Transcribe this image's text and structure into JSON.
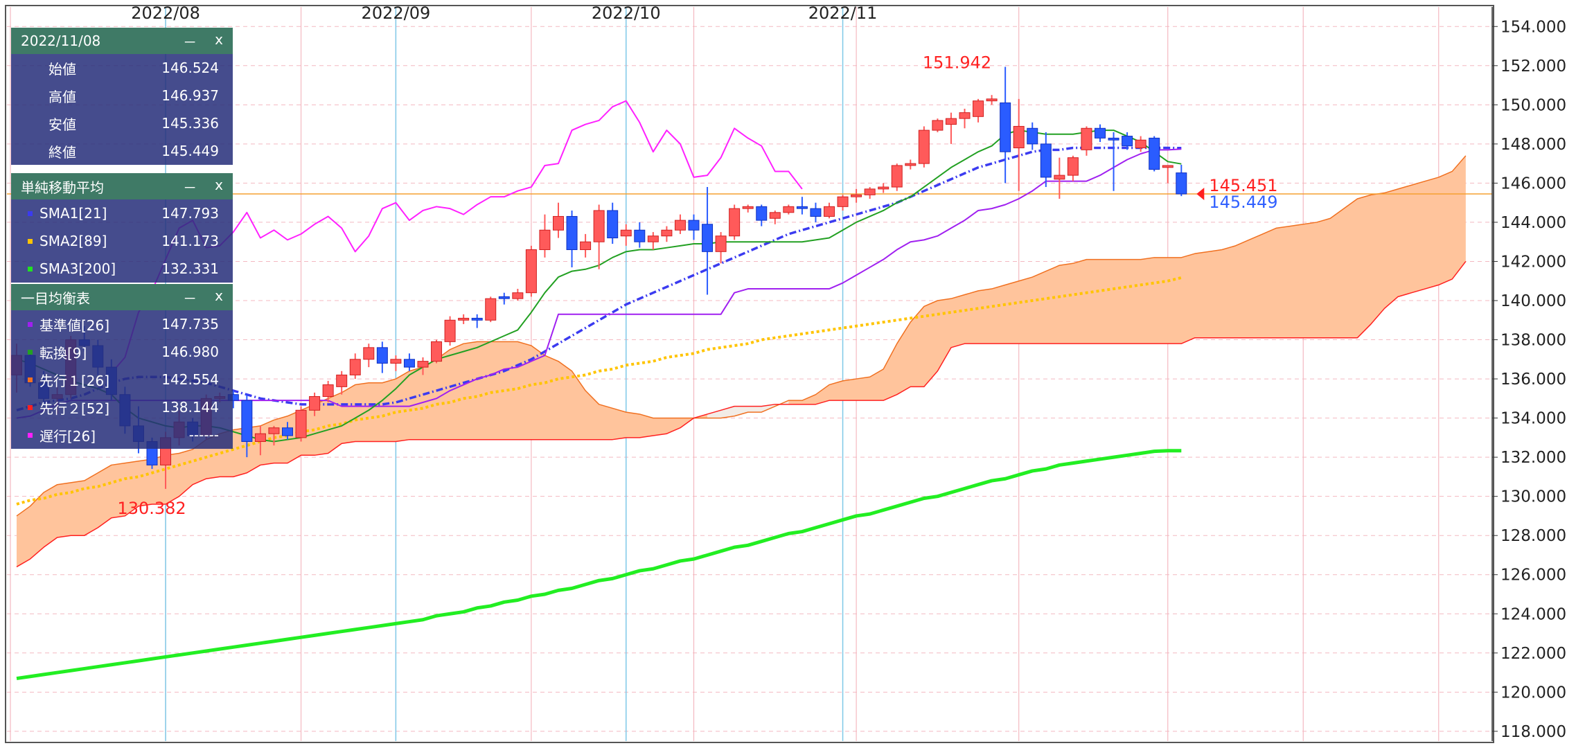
{
  "ohlc_panel": {
    "date": "2022/11/08",
    "minimize": "－",
    "close": "x",
    "rows": [
      {
        "label": "始値",
        "value": "146.524"
      },
      {
        "label": "高値",
        "value": "146.937"
      },
      {
        "label": "安値",
        "value": "145.336"
      },
      {
        "label": "終値",
        "value": "145.449"
      }
    ]
  },
  "sma_panel": {
    "title": "単純移動平均",
    "minimize": "－",
    "close": "x",
    "rows": [
      {
        "label": "SMA1[21]",
        "value": "147.793",
        "color": "#3b3bf0"
      },
      {
        "label": "SMA2[89]",
        "value": "141.173",
        "color": "#ffc400"
      },
      {
        "label": "SMA3[200]",
        "value": "132.331",
        "color": "#22e022"
      }
    ]
  },
  "ichimoku_panel": {
    "title": "一目均衡表",
    "minimize": "－",
    "close": "x",
    "rows": [
      {
        "label": "基準値[26]",
        "value": "147.735",
        "color": "#a020f0"
      },
      {
        "label": "転換[9]",
        "value": "146.980",
        "color": "#22a022"
      },
      {
        "label": "先行１[26]",
        "value": "142.554",
        "color": "#f07020"
      },
      {
        "label": "先行２[52]",
        "value": "138.144",
        "color": "#ff2020"
      },
      {
        "label": "遅行[26]",
        "value": "------",
        "color": "#ff20ff"
      }
    ]
  },
  "chart_data": {
    "type": "candlestick",
    "x_labels": [
      "2022/08",
      "2022/09",
      "2022/10",
      "2022/11"
    ],
    "y_ticks": [
      "118.000",
      "120.000",
      "122.000",
      "124.000",
      "126.000",
      "128.000",
      "130.000",
      "132.000",
      "134.000",
      "136.000",
      "138.000",
      "140.000",
      "142.000",
      "144.000",
      "146.000",
      "148.000",
      "150.000",
      "152.000",
      "154.000"
    ],
    "ylim": [
      117.5,
      155
    ],
    "high_annotation": "151.942",
    "low_annotation": "130.382",
    "price_marker_red": "145.451",
    "price_marker_blue": "145.449",
    "horizontal_line": 145.45,
    "colors": {
      "up": "#ff5a5a",
      "down": "#2a5cff",
      "kumo_fill": "#ffc49c",
      "kumo_fill_bearish": "#f2ece6",
      "hline": "#f5a030",
      "red_text": "#ff2020",
      "blue_text": "#3060ff"
    },
    "candles": [
      [
        136.2,
        137.8,
        135.3,
        137.2
      ],
      [
        137.2,
        137.4,
        135.6,
        135.8
      ],
      [
        135.8,
        136.4,
        134.6,
        135.0
      ],
      [
        135.0,
        135.6,
        134.2,
        135.2
      ],
      [
        135.2,
        138.2,
        135.0,
        138.0
      ],
      [
        138.0,
        138.7,
        137.4,
        137.7
      ],
      [
        137.7,
        138.0,
        136.2,
        136.6
      ],
      [
        136.6,
        137.0,
        134.9,
        135.2
      ],
      [
        135.2,
        135.6,
        133.2,
        133.6
      ],
      [
        133.6,
        134.6,
        132.2,
        132.8
      ],
      [
        132.8,
        133.0,
        131.4,
        131.6
      ],
      [
        131.6,
        133.3,
        130.382,
        133.0
      ],
      [
        133.0,
        134.4,
        132.6,
        133.8
      ],
      [
        133.8,
        134.0,
        132.8,
        133.1
      ],
      [
        133.1,
        135.2,
        132.9,
        135.0
      ],
      [
        135.0,
        135.3,
        134.8,
        135.1
      ],
      [
        135.2,
        135.4,
        134.5,
        134.9
      ],
      [
        134.9,
        135.2,
        132.0,
        132.8
      ],
      [
        132.8,
        133.6,
        132.1,
        133.2
      ],
      [
        133.2,
        133.6,
        132.6,
        133.5
      ],
      [
        133.5,
        133.8,
        132.9,
        133.1
      ],
      [
        133.0,
        134.6,
        132.8,
        134.4
      ],
      [
        134.4,
        135.3,
        134.1,
        135.1
      ],
      [
        135.1,
        135.9,
        134.8,
        135.7
      ],
      [
        135.6,
        136.4,
        135.2,
        136.2
      ],
      [
        136.2,
        137.3,
        136.0,
        137.0
      ],
      [
        137.0,
        137.8,
        136.6,
        137.6
      ],
      [
        137.6,
        137.9,
        136.3,
        136.8
      ],
      [
        136.8,
        137.2,
        136.4,
        137.0
      ],
      [
        137.0,
        137.3,
        136.4,
        136.6
      ],
      [
        136.6,
        137.1,
        136.2,
        136.9
      ],
      [
        136.9,
        138.0,
        136.8,
        137.9
      ],
      [
        137.9,
        139.2,
        137.7,
        139.0
      ],
      [
        139.0,
        139.3,
        138.8,
        139.1
      ],
      [
        139.1,
        139.3,
        138.6,
        139.0
      ],
      [
        139.0,
        140.2,
        138.9,
        140.1
      ],
      [
        140.2,
        140.4,
        139.8,
        140.1
      ],
      [
        140.1,
        140.6,
        140.0,
        140.4
      ],
      [
        140.4,
        142.8,
        140.2,
        142.6
      ],
      [
        142.6,
        144.4,
        142.2,
        143.6
      ],
      [
        143.6,
        145.0,
        143.2,
        144.3
      ],
      [
        144.3,
        144.6,
        141.7,
        142.6
      ],
      [
        142.6,
        143.4,
        142.2,
        143.0
      ],
      [
        143.0,
        144.9,
        141.6,
        144.6
      ],
      [
        144.6,
        145.0,
        142.9,
        143.2
      ],
      [
        143.3,
        143.9,
        142.8,
        143.6
      ],
      [
        143.6,
        144.0,
        142.7,
        143.0
      ],
      [
        143.0,
        143.5,
        142.6,
        143.3
      ],
      [
        143.3,
        143.8,
        143.0,
        143.6
      ],
      [
        143.6,
        144.4,
        143.4,
        144.1
      ],
      [
        144.1,
        144.4,
        143.1,
        143.6
      ],
      [
        143.9,
        145.8,
        140.3,
        142.5
      ],
      [
        142.5,
        143.5,
        141.9,
        143.3
      ],
      [
        143.3,
        144.9,
        143.1,
        144.7
      ],
      [
        144.7,
        144.9,
        144.5,
        144.8
      ],
      [
        144.8,
        144.9,
        143.8,
        144.1
      ],
      [
        144.2,
        144.6,
        143.9,
        144.5
      ],
      [
        144.5,
        144.9,
        144.4,
        144.8
      ],
      [
        144.8,
        145.3,
        144.4,
        144.7
      ],
      [
        144.7,
        145.0,
        144.0,
        144.3
      ],
      [
        144.3,
        145.0,
        144.2,
        144.8
      ],
      [
        144.8,
        145.4,
        144.6,
        145.3
      ],
      [
        145.3,
        145.7,
        145.0,
        145.4
      ],
      [
        145.4,
        145.8,
        145.2,
        145.7
      ],
      [
        145.7,
        146.0,
        145.5,
        145.8
      ],
      [
        145.8,
        147.0,
        145.6,
        146.9
      ],
      [
        146.9,
        147.2,
        146.7,
        147.0
      ],
      [
        147.0,
        148.9,
        146.8,
        148.7
      ],
      [
        148.7,
        149.3,
        148.6,
        149.2
      ],
      [
        149.0,
        149.6,
        148.0,
        149.3
      ],
      [
        149.3,
        149.8,
        148.8,
        149.6
      ],
      [
        149.4,
        150.3,
        149.1,
        150.2
      ],
      [
        150.2,
        150.5,
        150.0,
        150.3
      ],
      [
        150.1,
        151.942,
        146.0,
        147.6
      ],
      [
        147.8,
        150.3,
        145.6,
        148.9
      ],
      [
        148.8,
        149.1,
        147.7,
        148.0
      ],
      [
        148.0,
        148.6,
        145.8,
        146.3
      ],
      [
        146.2,
        147.3,
        145.2,
        146.4
      ],
      [
        146.4,
        147.4,
        146.1,
        147.3
      ],
      [
        147.7,
        148.9,
        147.4,
        148.8
      ],
      [
        148.8,
        149.0,
        148.1,
        148.3
      ],
      [
        148.3,
        148.6,
        145.6,
        148.2
      ],
      [
        148.4,
        148.6,
        147.7,
        147.9
      ],
      [
        147.8,
        148.4,
        147.6,
        148.2
      ],
      [
        148.3,
        148.4,
        146.6,
        146.7
      ],
      [
        146.8,
        146.9,
        146.0,
        146.9
      ],
      [
        146.524,
        146.937,
        145.336,
        145.449
      ]
    ],
    "sma1": [
      134.4,
      134.6,
      134.8,
      134.9,
      135.0,
      135.2,
      135.5,
      135.8,
      136.0,
      136.1,
      136.1,
      136.1,
      136.0,
      135.9,
      135.8,
      135.6,
      135.4,
      135.2,
      135.0,
      134.9,
      134.8,
      134.7,
      134.7,
      134.7,
      134.7,
      134.7,
      134.7,
      134.7,
      134.8,
      135.0,
      135.2,
      135.4,
      135.6,
      135.8,
      136.0,
      136.2,
      136.4,
      136.7,
      137.0,
      137.4,
      137.8,
      138.2,
      138.6,
      139.0,
      139.4,
      139.8,
      140.1,
      140.4,
      140.7,
      141.0,
      141.3,
      141.6,
      141.9,
      142.2,
      142.5,
      142.8,
      143.1,
      143.4,
      143.6,
      143.8,
      144.0,
      144.2,
      144.4,
      144.6,
      144.8,
      145.0,
      145.3,
      145.6,
      145.9,
      146.2,
      146.5,
      146.8,
      147.0,
      147.2,
      147.4,
      147.6,
      147.7,
      147.7,
      147.8,
      147.8,
      147.8,
      147.8,
      147.8,
      147.8,
      147.8,
      147.8,
      147.79
    ],
    "sma2": [
      129.6,
      129.8,
      129.9,
      130.1,
      130.2,
      130.4,
      130.5,
      130.7,
      130.9,
      131.0,
      131.2,
      131.4,
      131.6,
      131.8,
      132.0,
      132.2,
      132.4,
      132.6,
      132.8,
      133.0,
      133.1,
      133.3,
      133.4,
      133.6,
      133.7,
      133.9,
      134.0,
      134.1,
      134.3,
      134.4,
      134.5,
      134.7,
      134.8,
      135.0,
      135.1,
      135.3,
      135.4,
      135.5,
      135.7,
      135.8,
      136.0,
      136.1,
      136.2,
      136.4,
      136.5,
      136.7,
      136.8,
      136.9,
      137.1,
      137.2,
      137.3,
      137.5,
      137.6,
      137.7,
      137.8,
      138.0,
      138.1,
      138.2,
      138.3,
      138.4,
      138.5,
      138.6,
      138.7,
      138.8,
      138.9,
      139.0,
      139.1,
      139.2,
      139.3,
      139.4,
      139.5,
      139.6,
      139.7,
      139.8,
      139.9,
      140.0,
      140.1,
      140.2,
      140.3,
      140.4,
      140.5,
      140.6,
      140.7,
      140.8,
      140.9,
      141.0,
      141.17
    ],
    "sma3": [
      120.7,
      120.8,
      120.9,
      121.0,
      121.1,
      121.2,
      121.3,
      121.4,
      121.5,
      121.6,
      121.7,
      121.8,
      121.9,
      122.0,
      122.1,
      122.2,
      122.3,
      122.4,
      122.5,
      122.6,
      122.7,
      122.8,
      122.9,
      123.0,
      123.1,
      123.2,
      123.3,
      123.4,
      123.5,
      123.6,
      123.7,
      123.9,
      124.0,
      124.1,
      124.3,
      124.4,
      124.6,
      124.7,
      124.9,
      125.0,
      125.2,
      125.3,
      125.5,
      125.7,
      125.8,
      126.0,
      126.2,
      126.3,
      126.5,
      126.7,
      126.8,
      127.0,
      127.2,
      127.4,
      127.5,
      127.7,
      127.9,
      128.1,
      128.2,
      128.4,
      128.6,
      128.8,
      129.0,
      129.1,
      129.3,
      129.5,
      129.7,
      129.9,
      130.0,
      130.2,
      130.4,
      130.6,
      130.8,
      130.9,
      131.1,
      131.3,
      131.4,
      131.6,
      131.7,
      131.8,
      131.9,
      132.0,
      132.1,
      132.2,
      132.3,
      132.33,
      132.33
    ],
    "tenkan": [
      137.0,
      136.8,
      136.5,
      136.2,
      135.9,
      135.7,
      135.5,
      135.2,
      134.5,
      134.0,
      133.8,
      133.6,
      133.5,
      133.6,
      133.6,
      133.5,
      133.3,
      133.1,
      132.9,
      132.8,
      132.9,
      133.0,
      133.2,
      133.4,
      133.6,
      134.0,
      134.4,
      134.9,
      135.5,
      136.2,
      136.6,
      137.0,
      137.2,
      137.4,
      137.6,
      137.9,
      138.2,
      138.5,
      139.4,
      140.4,
      141.2,
      141.5,
      141.6,
      141.8,
      142.2,
      142.5,
      142.6,
      142.6,
      142.7,
      142.8,
      142.9,
      142.9,
      143.0,
      143.0,
      143.0,
      143.0,
      143.0,
      143.0,
      143.0,
      143.1,
      143.2,
      143.6,
      144.0,
      144.3,
      144.6,
      145.0,
      145.3,
      145.8,
      146.3,
      146.8,
      147.2,
      147.6,
      147.9,
      148.5,
      148.7,
      148.6,
      148.5,
      148.5,
      148.5,
      148.6,
      148.7,
      148.7,
      148.4,
      148.1,
      147.6,
      147.1,
      146.98
    ],
    "kijun": [
      134.0,
      134.1,
      134.4,
      134.7,
      134.9,
      134.9,
      134.9,
      134.9,
      134.9,
      134.9,
      134.9,
      134.9,
      134.9,
      134.9,
      134.9,
      134.9,
      134.9,
      134.9,
      134.9,
      134.9,
      134.9,
      134.9,
      134.9,
      134.9,
      134.6,
      134.6,
      134.6,
      134.6,
      134.6,
      134.6,
      134.8,
      135.0,
      135.4,
      135.7,
      136.0,
      136.2,
      136.5,
      136.6,
      136.9,
      137.2,
      139.3,
      139.3,
      139.3,
      139.3,
      139.3,
      139.3,
      139.3,
      139.3,
      139.3,
      139.3,
      139.3,
      139.3,
      139.3,
      140.4,
      140.6,
      140.6,
      140.6,
      140.6,
      140.6,
      140.6,
      140.6,
      140.9,
      141.3,
      141.7,
      142.1,
      142.6,
      143.0,
      143.1,
      143.3,
      143.7,
      144.1,
      144.6,
      144.7,
      144.9,
      145.2,
      145.6,
      146.1,
      146.1,
      146.1,
      146.1,
      146.4,
      146.8,
      147.2,
      147.5,
      147.7,
      147.7,
      147.74
    ],
    "chikou": [
      136.3,
      137.1,
      139.4,
      140.5,
      142.1,
      143.7,
      144.1,
      142.7,
      142.8,
      143.5,
      144.5,
      143.2,
      143.6,
      143.1,
      143.4,
      143.9,
      144.3,
      143.7,
      142.5,
      143.3,
      144.7,
      145.0,
      144.1,
      144.6,
      144.8,
      144.7,
      144.4,
      144.9,
      145.3,
      145.3,
      145.6,
      145.8,
      146.9,
      147.0,
      148.7,
      149.0,
      149.2,
      149.9,
      150.2,
      149.1,
      147.6,
      148.7,
      148.0,
      146.3,
      146.4,
      147.3,
      148.8,
      148.3,
      147.9,
      146.6,
      146.6,
      145.7
    ],
    "span_a": [
      129.0,
      129.5,
      130.2,
      130.6,
      130.7,
      130.8,
      131.2,
      131.6,
      131.7,
      131.8,
      131.9,
      132.1,
      132.2,
      132.4,
      132.9,
      133.2,
      133.4,
      133.5,
      133.6,
      133.9,
      134.1,
      134.4,
      134.7,
      135.0,
      135.3,
      135.7,
      135.8,
      135.8,
      136.0,
      136.4,
      136.6,
      137.0,
      137.5,
      137.8,
      137.9,
      137.9,
      137.9,
      137.9,
      137.7,
      137.2,
      136.9,
      136.4,
      135.4,
      134.7,
      134.5,
      134.3,
      134.2,
      134.0,
      134.0,
      134.0,
      134.0,
      134.0,
      134.0,
      134.1,
      134.3,
      134.3,
      134.6,
      134.9,
      134.9,
      135.2,
      135.7,
      135.9,
      136.0,
      136.1,
      136.5,
      137.8,
      138.9,
      139.7,
      140.0,
      140.1,
      140.3,
      140.5,
      140.6,
      140.8,
      141.0,
      141.2,
      141.5,
      141.8,
      141.9,
      142.1,
      142.1,
      142.1,
      142.1,
      142.1,
      142.2,
      142.2,
      142.2,
      142.4,
      142.5,
      142.6,
      142.8,
      143.1,
      143.4,
      143.7,
      143.8,
      143.9,
      144.0,
      144.2,
      144.7,
      145.2,
      145.4,
      145.5,
      145.7,
      145.9,
      146.1,
      146.3,
      146.6,
      147.4
    ],
    "span_b": [
      126.4,
      126.8,
      127.4,
      127.9,
      128.0,
      128.0,
      128.4,
      128.9,
      129.0,
      129.5,
      129.6,
      129.6,
      130.0,
      130.6,
      130.9,
      131.0,
      131.0,
      131.2,
      131.6,
      131.7,
      131.7,
      132.1,
      132.1,
      132.2,
      132.7,
      132.8,
      132.8,
      132.8,
      132.8,
      132.9,
      132.9,
      132.9,
      132.9,
      132.9,
      132.9,
      132.9,
      132.9,
      132.9,
      132.9,
      132.9,
      132.9,
      132.9,
      132.9,
      132.9,
      132.9,
      133.0,
      133.0,
      133.1,
      133.2,
      133.5,
      134.0,
      134.2,
      134.4,
      134.6,
      134.6,
      134.6,
      134.7,
      134.7,
      134.7,
      134.7,
      134.9,
      134.9,
      134.9,
      134.9,
      134.9,
      135.2,
      135.6,
      135.6,
      136.4,
      137.6,
      137.8,
      137.8,
      137.8,
      137.8,
      137.8,
      137.8,
      137.8,
      137.8,
      137.8,
      137.8,
      137.8,
      137.8,
      137.8,
      137.8,
      137.8,
      137.8,
      137.8,
      138.1,
      138.1,
      138.1,
      138.1,
      138.1,
      138.1,
      138.1,
      138.1,
      138.1,
      138.1,
      138.1,
      138.1,
      138.1,
      138.8,
      139.6,
      140.2,
      140.4,
      140.6,
      140.8,
      141.1,
      142.0
    ]
  }
}
